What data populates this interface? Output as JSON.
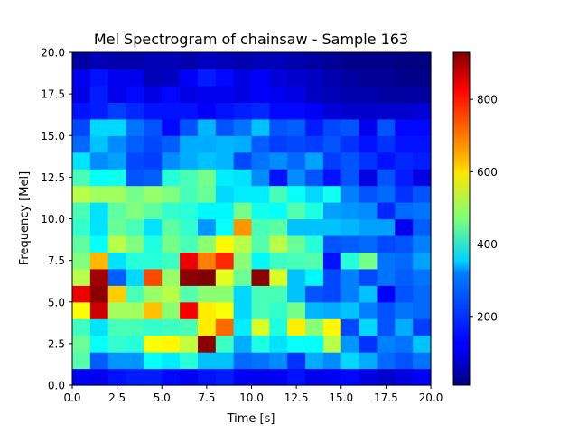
{
  "chart_data": {
    "type": "heatmap",
    "title": "Mel Spectrogram of chainsaw - Sample 163",
    "xlabel": "Time [s]",
    "ylabel": "Frequency [Mel]",
    "xlim": [
      0.0,
      20.0
    ],
    "ylim": [
      0.0,
      20.0
    ],
    "x_ticks": [
      0,
      2.5,
      5,
      7.5,
      10,
      12.5,
      15,
      17.5,
      20
    ],
    "x_tick_labels": [
      "0.0",
      "2.5",
      "5.0",
      "7.5",
      "10.0",
      "12.5",
      "15.0",
      "17.5",
      "20.0"
    ],
    "y_ticks": [
      0,
      2.5,
      5,
      7.5,
      10,
      12.5,
      15,
      17.5,
      20
    ],
    "y_tick_labels": [
      "0.0",
      "2.5",
      "5.0",
      "7.5",
      "10.0",
      "12.5",
      "15.0",
      "17.5",
      "20.0"
    ],
    "colormap": "jet",
    "color_range": [
      10,
      930
    ],
    "colorbar_ticks": [
      200,
      400,
      600,
      800
    ],
    "colorbar_tick_labels": [
      "200",
      "400",
      "600",
      "800"
    ],
    "grid_note": "20 rows (frequency bins, bottom to top) x 20 columns (time bins, left to right); values estimated from color",
    "rows_bottom_to_top": [
      [
        120,
        110,
        140,
        150,
        150,
        130,
        120,
        140,
        150,
        120,
        110,
        120,
        140,
        110,
        120,
        130,
        100,
        80,
        100,
        120
      ],
      [
        430,
        210,
        260,
        260,
        360,
        340,
        390,
        300,
        300,
        220,
        230,
        250,
        170,
        280,
        250,
        320,
        280,
        220,
        200,
        230
      ],
      [
        450,
        360,
        400,
        390,
        580,
        590,
        530,
        920,
        410,
        280,
        380,
        330,
        360,
        360,
        520,
        260,
        170,
        240,
        230,
        300
      ],
      [
        410,
        330,
        420,
        420,
        400,
        410,
        420,
        600,
        720,
        340,
        550,
        380,
        600,
        480,
        590,
        190,
        320,
        200,
        280,
        180
      ],
      [
        580,
        860,
        500,
        500,
        640,
        480,
        820,
        600,
        580,
        320,
        420,
        400,
        460,
        290,
        280,
        300,
        240,
        200,
        230,
        220
      ],
      [
        830,
        920,
        630,
        420,
        490,
        520,
        430,
        480,
        480,
        320,
        420,
        420,
        300,
        200,
        190,
        240,
        300,
        120,
        200,
        220
      ],
      [
        520,
        900,
        210,
        320,
        750,
        490,
        920,
        930,
        560,
        450,
        920,
        550,
        300,
        350,
        190,
        240,
        190,
        230,
        210,
        230
      ],
      [
        470,
        650,
        330,
        390,
        390,
        410,
        830,
        700,
        780,
        480,
        350,
        410,
        420,
        430,
        140,
        390,
        460,
        230,
        220,
        270
      ],
      [
        440,
        360,
        520,
        470,
        380,
        460,
        420,
        480,
        590,
        520,
        430,
        520,
        450,
        390,
        200,
        210,
        220,
        190,
        200,
        240
      ],
      [
        400,
        330,
        450,
        420,
        330,
        440,
        400,
        260,
        360,
        680,
        420,
        440,
        300,
        300,
        300,
        290,
        270,
        270,
        110,
        210
      ],
      [
        420,
        330,
        440,
        470,
        440,
        400,
        390,
        350,
        350,
        460,
        370,
        360,
        430,
        380,
        270,
        260,
        250,
        160,
        220,
        230
      ],
      [
        520,
        500,
        500,
        460,
        490,
        470,
        420,
        450,
        320,
        340,
        340,
        420,
        360,
        320,
        370,
        240,
        200,
        220,
        170,
        200
      ],
      [
        420,
        360,
        370,
        200,
        210,
        390,
        420,
        460,
        340,
        330,
        250,
        140,
        250,
        200,
        140,
        200,
        100,
        200,
        150,
        100
      ],
      [
        330,
        250,
        270,
        190,
        180,
        250,
        280,
        300,
        290,
        190,
        230,
        250,
        220,
        270,
        180,
        200,
        170,
        140,
        160,
        150
      ],
      [
        220,
        300,
        250,
        210,
        190,
        210,
        280,
        280,
        290,
        280,
        210,
        180,
        190,
        180,
        200,
        170,
        140,
        170,
        140,
        140
      ],
      [
        190,
        320,
        320,
        230,
        200,
        130,
        200,
        290,
        200,
        230,
        300,
        200,
        210,
        150,
        190,
        200,
        110,
        200,
        130,
        130
      ],
      [
        140,
        150,
        180,
        160,
        140,
        140,
        140,
        120,
        140,
        150,
        160,
        130,
        130,
        120,
        90,
        80,
        80,
        80,
        80,
        90
      ],
      [
        100,
        150,
        110,
        130,
        100,
        130,
        100,
        110,
        110,
        100,
        120,
        110,
        100,
        70,
        60,
        50,
        50,
        40,
        40,
        40
      ],
      [
        110,
        140,
        110,
        110,
        60,
        70,
        120,
        150,
        130,
        100,
        120,
        90,
        80,
        70,
        50,
        40,
        30,
        30,
        20,
        20
      ],
      [
        40,
        60,
        50,
        50,
        60,
        60,
        50,
        70,
        60,
        50,
        60,
        60,
        50,
        40,
        30,
        20,
        20,
        20,
        15,
        10
      ]
    ]
  }
}
